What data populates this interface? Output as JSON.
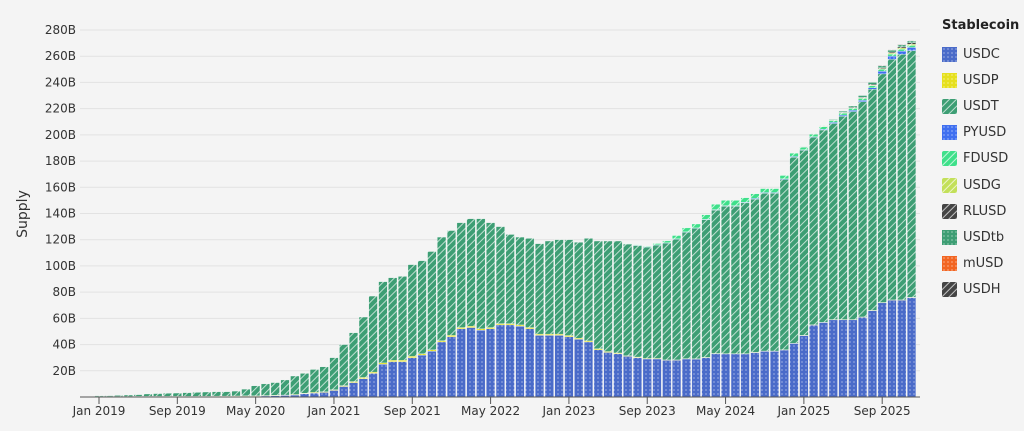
{
  "chart_data": {
    "type": "bar",
    "stacked": true,
    "ylabel": "Supply",
    "legend_title": "Stablecoin",
    "legend_position": "right",
    "grid": true,
    "ylim": [
      0,
      280
    ],
    "y_ticks": [
      "20B",
      "40B",
      "60B",
      "80B",
      "100B",
      "120B",
      "140B",
      "160B",
      "180B",
      "200B",
      "220B",
      "240B",
      "260B",
      "280B"
    ],
    "x_ticks": [
      {
        "label": "Jan 2019",
        "index": 0
      },
      {
        "label": "Sep 2019",
        "index": 8
      },
      {
        "label": "May 2020",
        "index": 16
      },
      {
        "label": "Jan 2021",
        "index": 24
      },
      {
        "label": "Sep 2021",
        "index": 32
      },
      {
        "label": "May 2022",
        "index": 40
      },
      {
        "label": "Jan 2023",
        "index": 48
      },
      {
        "label": "Sep 2023",
        "index": 56
      },
      {
        "label": "May 2024",
        "index": 64
      },
      {
        "label": "Jan 2025",
        "index": 72
      },
      {
        "label": "Sep 2025",
        "index": 80
      }
    ],
    "categories": [
      "Jan 2019",
      "Feb 2019",
      "Mar 2019",
      "Apr 2019",
      "May 2019",
      "Jun 2019",
      "Jul 2019",
      "Aug 2019",
      "Sep 2019",
      "Oct 2019",
      "Nov 2019",
      "Dec 2019",
      "Jan 2020",
      "Feb 2020",
      "Mar 2020",
      "Apr 2020",
      "May 2020",
      "Jun 2020",
      "Jul 2020",
      "Aug 2020",
      "Sep 2020",
      "Oct 2020",
      "Nov 2020",
      "Dec 2020",
      "Jan 2021",
      "Feb 2021",
      "Mar 2021",
      "Apr 2021",
      "May 2021",
      "Jun 2021",
      "Jul 2021",
      "Aug 2021",
      "Sep 2021",
      "Oct 2021",
      "Nov 2021",
      "Dec 2021",
      "Jan 2022",
      "Feb 2022",
      "Mar 2022",
      "Apr 2022",
      "May 2022",
      "Jun 2022",
      "Jul 2022",
      "Aug 2022",
      "Sep 2022",
      "Oct 2022",
      "Nov 2022",
      "Dec 2022",
      "Jan 2023",
      "Feb 2023",
      "Mar 2023",
      "Apr 2023",
      "May 2023",
      "Jun 2023",
      "Jul 2023",
      "Aug 2023",
      "Sep 2023",
      "Oct 2023",
      "Nov 2023",
      "Dec 2023",
      "Jan 2024",
      "Feb 2024",
      "Mar 2024",
      "Apr 2024",
      "May 2024",
      "Jun 2024",
      "Jul 2024",
      "Aug 2024",
      "Sep 2024",
      "Oct 2024",
      "Nov 2024",
      "Dec 2024",
      "Jan 2025",
      "Feb 2025",
      "Mar 2025",
      "Apr 2025",
      "May 2025",
      "Jun 2025",
      "Jul 2025",
      "Aug 2025",
      "Sep 2025",
      "Oct 2025",
      "Nov 2025",
      "Dec 2025"
    ],
    "series": [
      {
        "name": "USDC",
        "color": "#4a6bc9",
        "pattern": "dots",
        "values": [
          0.3,
          0.3,
          0.3,
          0.3,
          0.4,
          0.4,
          0.4,
          0.5,
          0.5,
          0.5,
          0.5,
          0.5,
          0.5,
          0.5,
          0.6,
          0.7,
          0.7,
          0.8,
          1,
          1.2,
          1.5,
          2.5,
          3,
          3.5,
          5,
          8,
          11,
          14,
          18,
          25,
          27,
          27,
          30,
          32,
          35,
          42,
          46,
          52,
          53,
          51,
          52,
          55,
          55,
          54,
          52,
          47,
          47,
          47,
          46,
          44,
          42,
          36,
          34,
          33,
          31,
          30,
          29,
          29,
          28,
          28,
          29,
          29,
          30,
          33,
          33,
          33,
          33,
          34,
          35,
          35,
          36,
          41,
          47,
          55,
          57,
          59,
          59,
          59,
          61,
          66,
          72,
          74,
          74,
          76
        ]
      },
      {
        "name": "USDP",
        "color": "#e6e01e",
        "pattern": "dots",
        "values": [
          0.1,
          0.1,
          0.1,
          0.1,
          0.1,
          0.1,
          0.1,
          0.1,
          0.1,
          0.1,
          0.1,
          0.1,
          0.2,
          0.2,
          0.2,
          0.2,
          0.2,
          0.3,
          0.3,
          0.3,
          0.4,
          0.4,
          0.5,
          0.5,
          0.6,
          0.7,
          0.8,
          0.9,
          1,
          1,
          1,
          1,
          1,
          1,
          1,
          1,
          1,
          1,
          1,
          1,
          1,
          1,
          1,
          1,
          1,
          1,
          1,
          1,
          0.9,
          0.9,
          0.8,
          0.8,
          0.7,
          0.6,
          0.5,
          0.5,
          0.4,
          0.4,
          0.3,
          0.3,
          0.3,
          0.2,
          0.2,
          0.2,
          0.1,
          0.1,
          0.1,
          0.1,
          0.1,
          0.1,
          0.1,
          0.1,
          0.1,
          0.1,
          0.1,
          0.1,
          0.1,
          0.1,
          0.1,
          0.1,
          0.1,
          0.1,
          0.1,
          0.1
        ]
      },
      {
        "name": "USDT",
        "color": "#3d9e74",
        "pattern": "stripes",
        "values": [
          0.5,
          0.6,
          0.8,
          1.1,
          1.3,
          1.8,
          2.1,
          2.2,
          2.4,
          2.7,
          2.9,
          3.2,
          3.3,
          3.3,
          3.7,
          5.1,
          7.6,
          8.9,
          9.7,
          11.5,
          14.1,
          15.1,
          17.5,
          19,
          24.4,
          31.3,
          37.2,
          46.1,
          58,
          62,
          63,
          64,
          70,
          71,
          75,
          79,
          80,
          80,
          82,
          84,
          80,
          74,
          68,
          67,
          68,
          69,
          71,
          72,
          73.1,
          73.1,
          78.2,
          82.2,
          84.3,
          85.4,
          85.2,
          85.2,
          85.1,
          86.6,
          89.2,
          92.2,
          96.4,
          99.5,
          105,
          109.4,
          112.5,
          112.5,
          115,
          116.9,
          120.4,
          120.4,
          129.9,
          141.9,
          141.1,
          143,
          146.6,
          149.6,
          155.1,
          158.7,
          164.2,
          168.7,
          174.4,
          183.5,
          187.3,
          188.1
        ]
      },
      {
        "name": "PYUSD",
        "color": "#3f6ff0",
        "pattern": "dots",
        "values": [
          0,
          0,
          0,
          0,
          0,
          0,
          0,
          0,
          0,
          0,
          0,
          0,
          0,
          0,
          0,
          0,
          0,
          0,
          0,
          0,
          0,
          0,
          0,
          0,
          0,
          0,
          0,
          0,
          0,
          0,
          0,
          0,
          0,
          0,
          0,
          0,
          0,
          0,
          0,
          0,
          0,
          0,
          0,
          0,
          0,
          0,
          0,
          0,
          0,
          0,
          0,
          0,
          0,
          0,
          0,
          0.1,
          0.1,
          0.1,
          0.1,
          0.2,
          0.3,
          0.3,
          0.3,
          0.4,
          0.4,
          0.4,
          0.4,
          0.5,
          0.5,
          0.5,
          0.5,
          0.5,
          0.5,
          0.5,
          0.6,
          0.8,
          0.9,
          0.9,
          1,
          1.1,
          2,
          2.5,
          2.5,
          2.5
        ]
      },
      {
        "name": "FDUSD",
        "color": "#3ee08a",
        "pattern": "stripes",
        "values": [
          0,
          0,
          0,
          0,
          0,
          0,
          0,
          0,
          0,
          0,
          0,
          0,
          0,
          0,
          0,
          0,
          0,
          0,
          0,
          0,
          0,
          0,
          0,
          0,
          0,
          0,
          0,
          0,
          0,
          0,
          0,
          0,
          0,
          0,
          0,
          0,
          0,
          0,
          0,
          0,
          0,
          0,
          0,
          0,
          0,
          0,
          0,
          0,
          0,
          0,
          0,
          0,
          0,
          0,
          0.3,
          0.3,
          0.5,
          1,
          1.5,
          2.5,
          3,
          3,
          3.5,
          4,
          4,
          4,
          3.5,
          3.5,
          3,
          3,
          2.5,
          2.5,
          2,
          2,
          2,
          1.5,
          1.5,
          1.5,
          1.5,
          1.5,
          1.5,
          1.5,
          1.5,
          1.5
        ]
      },
      {
        "name": "USDG",
        "color": "#c3e05a",
        "pattern": "stripes",
        "values": [
          0,
          0,
          0,
          0,
          0,
          0,
          0,
          0,
          0,
          0,
          0,
          0,
          0,
          0,
          0,
          0,
          0,
          0,
          0,
          0,
          0,
          0,
          0,
          0,
          0,
          0,
          0,
          0,
          0,
          0,
          0,
          0,
          0,
          0,
          0,
          0,
          0,
          0,
          0,
          0,
          0,
          0,
          0,
          0,
          0,
          0,
          0,
          0,
          0,
          0,
          0,
          0,
          0,
          0,
          0,
          0,
          0,
          0,
          0,
          0,
          0,
          0,
          0,
          0,
          0,
          0,
          0,
          0,
          0,
          0,
          0,
          0,
          0.1,
          0.1,
          0.2,
          0.2,
          0.2,
          0.3,
          0.4,
          0.5,
          0.6,
          0.8,
          0.9,
          1
        ]
      },
      {
        "name": "RLUSD",
        "color": "#444444",
        "pattern": "stripes",
        "values": [
          0,
          0,
          0,
          0,
          0,
          0,
          0,
          0,
          0,
          0,
          0,
          0,
          0,
          0,
          0,
          0,
          0,
          0,
          0,
          0,
          0,
          0,
          0,
          0,
          0,
          0,
          0,
          0,
          0,
          0,
          0,
          0,
          0,
          0,
          0,
          0,
          0,
          0,
          0,
          0,
          0,
          0,
          0,
          0,
          0,
          0,
          0,
          0,
          0,
          0,
          0,
          0,
          0,
          0,
          0,
          0,
          0,
          0,
          0,
          0,
          0,
          0,
          0,
          0,
          0,
          0,
          0,
          0,
          0,
          0,
          0,
          0,
          0.1,
          0.1,
          0.2,
          0.3,
          0.4,
          0.5,
          0.6,
          0.7,
          0.7,
          0.8,
          0.9,
          1
        ]
      },
      {
        "name": "USDtb",
        "color": "#3d9e74",
        "pattern": "dots",
        "values": [
          0,
          0,
          0,
          0,
          0,
          0,
          0,
          0,
          0,
          0,
          0,
          0,
          0,
          0,
          0,
          0,
          0,
          0,
          0,
          0,
          0,
          0,
          0,
          0,
          0,
          0,
          0,
          0,
          0,
          0,
          0,
          0,
          0,
          0,
          0,
          0,
          0,
          0,
          0,
          0,
          0,
          0,
          0,
          0,
          0,
          0,
          0,
          0,
          0,
          0,
          0,
          0,
          0,
          0,
          0,
          0,
          0,
          0,
          0,
          0,
          0,
          0,
          0,
          0,
          0,
          0,
          0,
          0,
          0,
          0,
          0,
          0,
          0.1,
          0.2,
          0.3,
          0.5,
          0.8,
          1,
          1.2,
          1.4,
          1.5,
          1.5,
          1.5,
          1.5
        ]
      },
      {
        "name": "mUSD",
        "color": "#f26522",
        "pattern": "dots",
        "values": [
          0,
          0,
          0,
          0,
          0,
          0,
          0,
          0,
          0,
          0,
          0,
          0,
          0,
          0,
          0,
          0,
          0,
          0,
          0,
          0,
          0,
          0,
          0,
          0,
          0,
          0,
          0,
          0,
          0,
          0,
          0,
          0,
          0,
          0,
          0,
          0,
          0,
          0,
          0,
          0,
          0,
          0,
          0,
          0,
          0,
          0,
          0,
          0,
          0,
          0,
          0,
          0,
          0,
          0,
          0,
          0,
          0,
          0,
          0,
          0,
          0,
          0,
          0,
          0,
          0,
          0,
          0,
          0,
          0,
          0,
          0,
          0,
          0,
          0,
          0,
          0,
          0,
          0,
          0,
          0,
          0.1,
          0.2,
          0.2,
          0.2
        ]
      },
      {
        "name": "USDH",
        "color": "#444444",
        "pattern": "stripes",
        "values": [
          0,
          0,
          0,
          0,
          0,
          0,
          0,
          0,
          0,
          0,
          0,
          0,
          0,
          0,
          0,
          0,
          0,
          0,
          0,
          0,
          0,
          0,
          0,
          0,
          0,
          0,
          0,
          0,
          0,
          0,
          0,
          0,
          0,
          0,
          0,
          0,
          0,
          0,
          0,
          0,
          0,
          0,
          0,
          0,
          0,
          0,
          0,
          0,
          0,
          0,
          0,
          0,
          0,
          0,
          0,
          0,
          0,
          0,
          0,
          0,
          0,
          0,
          0,
          0,
          0,
          0,
          0,
          0,
          0,
          0,
          0,
          0,
          0,
          0,
          0,
          0,
          0,
          0,
          0,
          0,
          0.1,
          0.1,
          0.1,
          0.1
        ]
      }
    ]
  }
}
